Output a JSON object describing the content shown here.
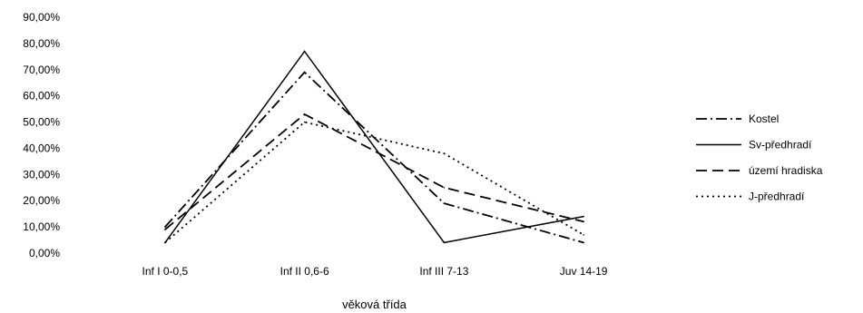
{
  "chart_data": {
    "type": "line",
    "categories": [
      "Inf I 0-0,5",
      "Inf II 0,6-6",
      "Inf III 7-13",
      "Juv 14-19"
    ],
    "series": [
      {
        "name": "Kostel",
        "values": [
          10,
          69,
          19,
          4
        ],
        "color": "#000000",
        "dash": "dashdot"
      },
      {
        "name": "Sv-předhradí",
        "values": [
          4,
          77,
          4,
          14
        ],
        "color": "#000000",
        "dash": "solid"
      },
      {
        "name": "území hradiska",
        "values": [
          9,
          53,
          25,
          12
        ],
        "color": "#000000",
        "dash": "dash"
      },
      {
        "name": "J-předhradí",
        "values": [
          4,
          50,
          38,
          7
        ],
        "color": "#000000",
        "dash": "dot"
      }
    ],
    "xlabel": "věková třída",
    "ylabel": "",
    "ylim": [
      0,
      90
    ],
    "yticks": [
      "0,00%",
      "10,00%",
      "20,00%",
      "30,00%",
      "40,00%",
      "50,00%",
      "60,00%",
      "70,00%",
      "80,00%",
      "90,00%"
    ],
    "grid": false,
    "legend_position": "right"
  }
}
